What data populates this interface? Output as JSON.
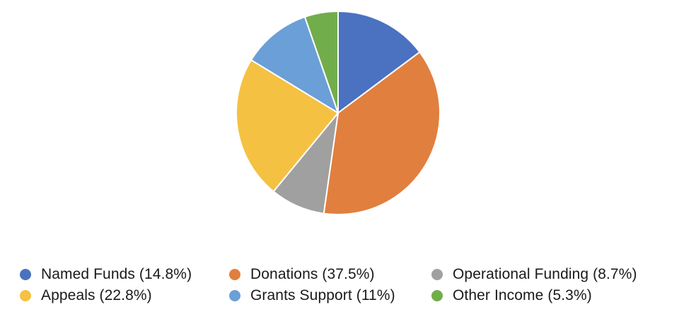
{
  "chart_data": {
    "type": "pie",
    "slices": [
      {
        "label": "Named Funds (14.8%)",
        "value": 14.8,
        "color": "#4a72c1"
      },
      {
        "label": "Donations (37.5%)",
        "value": 37.5,
        "color": "#e17f3e"
      },
      {
        "label": "Operational Funding (8.7%)",
        "value": 8.7,
        "color": "#a0a0a0"
      },
      {
        "label": "Appeals (22.8%)",
        "value": 22.8,
        "color": "#f4c142"
      },
      {
        "label": "Grants Support (11%)",
        "value": 11,
        "color": "#6b9fd7"
      },
      {
        "label": "Other Income (5.3%)",
        "value": 5.3,
        "color": "#72ad4b"
      }
    ],
    "legend_position": "bottom"
  }
}
